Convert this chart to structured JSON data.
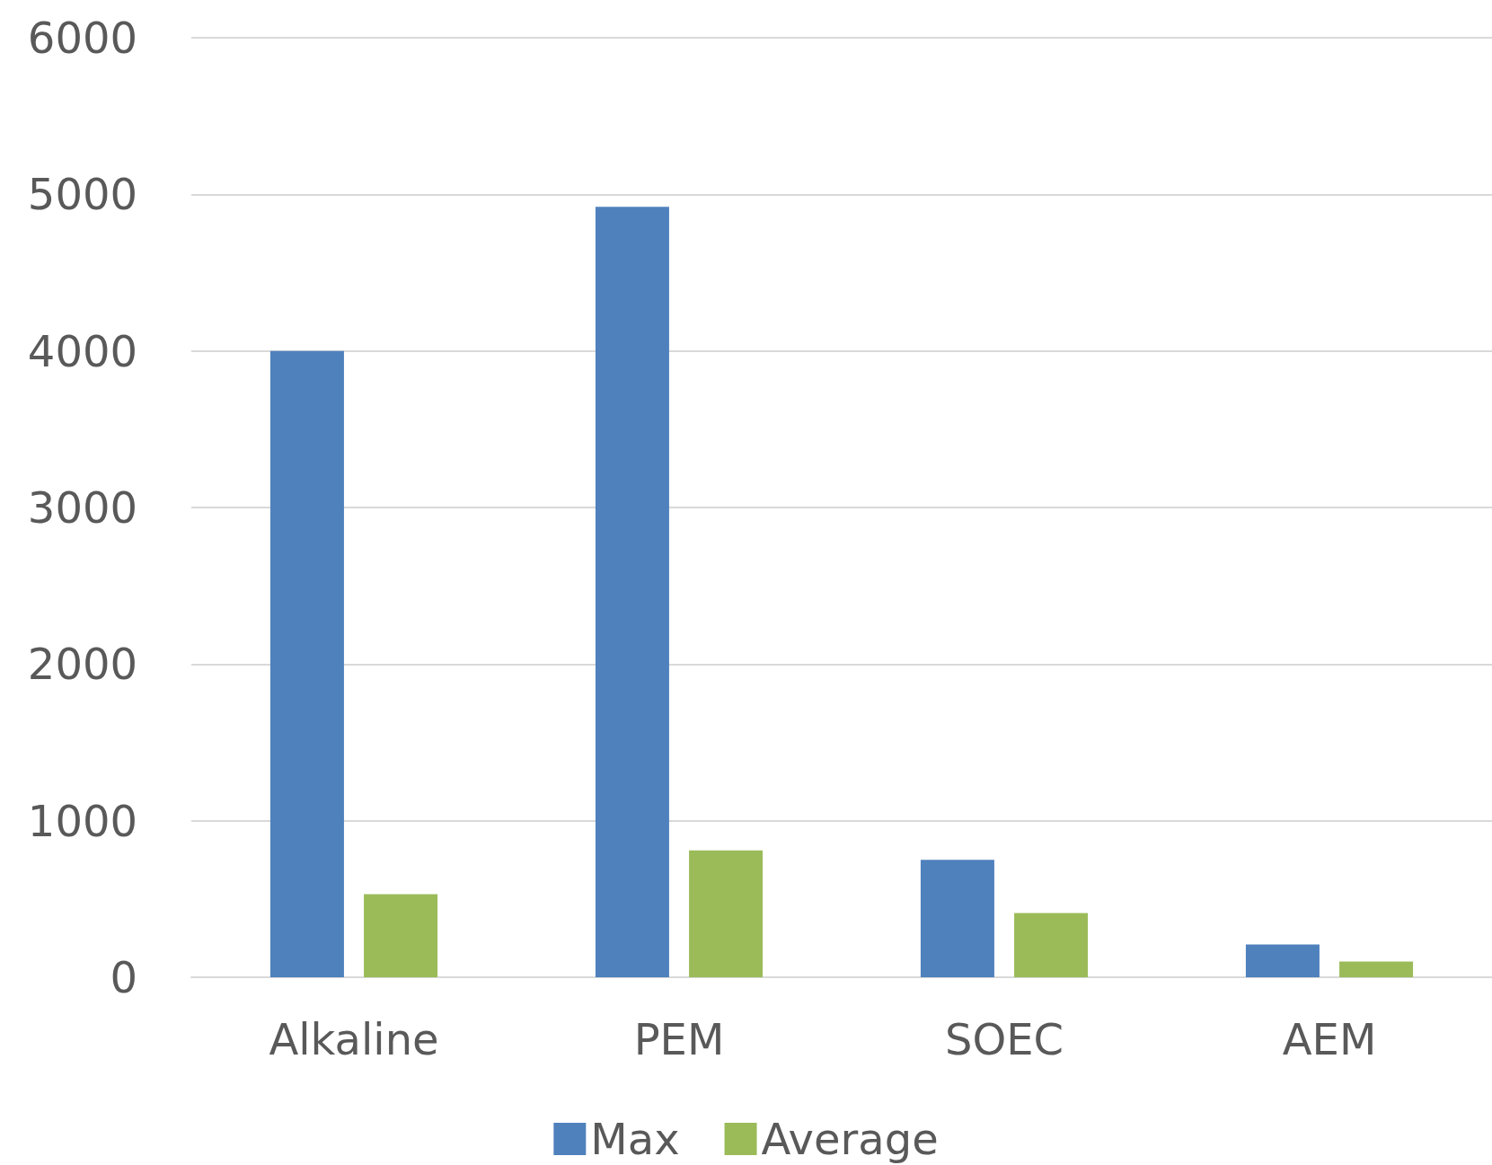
{
  "chart_data": {
    "type": "bar",
    "categories": [
      "Alkaline",
      "PEM",
      "SOEC",
      "AEM"
    ],
    "series": [
      {
        "name": "Max",
        "color": "#4f81bd",
        "values": [
          4000,
          4920,
          750,
          210
        ]
      },
      {
        "name": "Average",
        "color": "#9bbb59",
        "values": [
          530,
          810,
          410,
          100
        ]
      }
    ],
    "ylim": [
      0,
      6000
    ],
    "yticks": [
      0,
      1000,
      2000,
      3000,
      4000,
      5000,
      6000
    ],
    "grid": "y",
    "legend": "bottom"
  }
}
